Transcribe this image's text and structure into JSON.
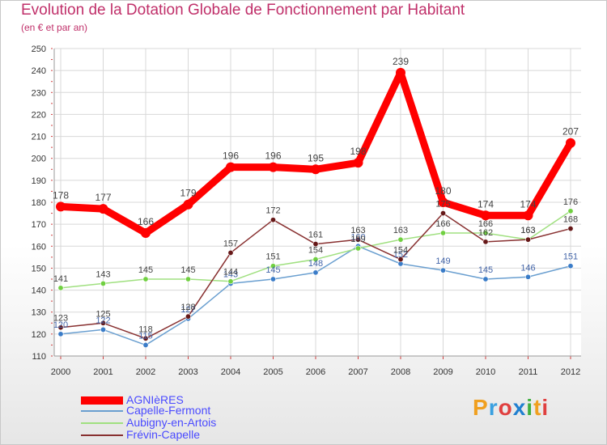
{
  "header": {
    "title": "Evolution de la Dotation Globale de Fonctionnement par Habitant",
    "subtitle": "(en € et par an)"
  },
  "logo": {
    "text": "Proxiti",
    "colors": [
      "#f0a020",
      "#3aa0e0",
      "#e04040",
      "#2080d0",
      "#40b040",
      "#f0a020",
      "#e04040"
    ]
  },
  "chart_data": {
    "type": "line",
    "title": "Evolution de la Dotation Globale de Fonctionnement par Habitant",
    "subtitle": "(en € et par an)",
    "xlabel": "",
    "ylabel": "",
    "x": [
      "2000",
      "2001",
      "2002",
      "2003",
      "2004",
      "2005",
      "2006",
      "2007",
      "2008",
      "2009",
      "2010",
      "2011",
      "2012"
    ],
    "ylim": [
      110,
      250
    ],
    "yticks": [
      110,
      120,
      130,
      140,
      150,
      160,
      170,
      180,
      190,
      200,
      210,
      220,
      230,
      240,
      250
    ],
    "grid": true,
    "legend_position": "bottom-left",
    "series": [
      {
        "name": "AGNIèRES",
        "color": "#ff0000",
        "marker": "#ff0000",
        "values": [
          178,
          177,
          166,
          179,
          196,
          196,
          195,
          198,
          239,
          180,
          174,
          174,
          207
        ]
      },
      {
        "name": "Capelle-Fermont",
        "color": "#6a9fd0",
        "marker": "#3a7cc8",
        "values": [
          120,
          122,
          115,
          127,
          143,
          145,
          148,
          160,
          152,
          149,
          145,
          146,
          151
        ]
      },
      {
        "name": "Aubigny-en-Artois",
        "color": "#a0e080",
        "marker": "#70d040",
        "values": [
          141,
          143,
          145,
          145,
          144,
          151,
          154,
          159,
          163,
          166,
          166,
          163,
          176
        ]
      },
      {
        "name": "Frévin-Capelle",
        "color": "#883030",
        "marker": "#661818",
        "values": [
          123,
          125,
          118,
          128,
          157,
          172,
          161,
          163,
          154,
          175,
          162,
          163,
          168
        ]
      }
    ]
  }
}
